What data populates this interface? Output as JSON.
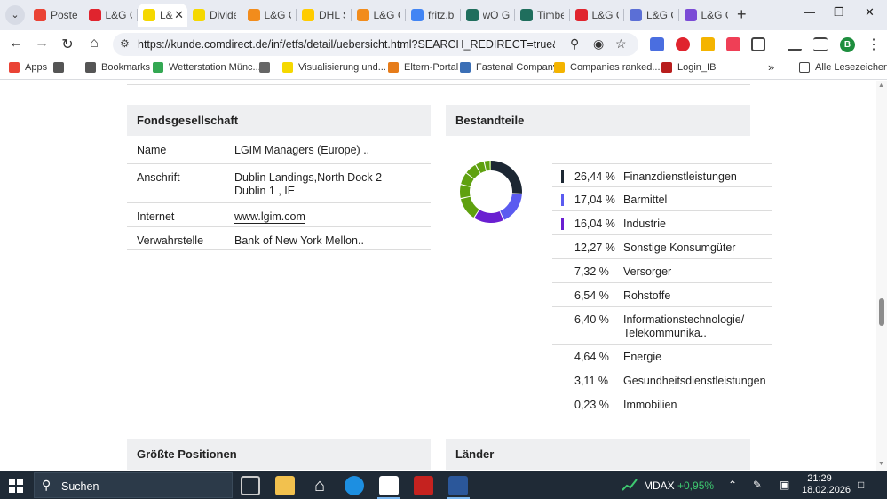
{
  "browser": {
    "tabs": [
      {
        "label": "Postei",
        "color": "#ea4335"
      },
      {
        "label": "L&G G",
        "color": "#e0242e"
      },
      {
        "label": "L&",
        "color": "#f5d800",
        "active": true
      },
      {
        "label": "Divide",
        "color": "#f5d800"
      },
      {
        "label": "L&G G",
        "color": "#f28c1c"
      },
      {
        "label": "DHL S",
        "color": "#ffcc00"
      },
      {
        "label": "L&G G",
        "color": "#f28c1c"
      },
      {
        "label": "fritz.b",
        "color": "#4285f4"
      },
      {
        "label": "wO G",
        "color": "#1f6e5d"
      },
      {
        "label": "Timbe",
        "color": "#1f6e5d"
      },
      {
        "label": "L&G G",
        "color": "#e0242e"
      },
      {
        "label": "L&G G",
        "color": "#5b6fd6"
      },
      {
        "label": "L&G G",
        "color": "#7b4bd6"
      }
    ],
    "url": "https://kunde.comdirect.de/inf/etfs/detail/uebersicht.html?SEARCH_REDIRECT=true&REDIRECT_T..."
  },
  "bookmarks": [
    {
      "label": "Apps",
      "icon": "apps-grid-icon",
      "color": "#ea4335"
    },
    {
      "label": "",
      "icon": "tab-groups-icon",
      "color": "#555555"
    },
    {
      "label": "Bookmarks",
      "icon": "star-icon",
      "color": "#555555"
    },
    {
      "label": "Wetterstation Münc...",
      "icon": "weather-icon",
      "color": "#34a853"
    },
    {
      "label": "",
      "icon": "globe-icon",
      "color": "#666666"
    },
    {
      "label": "Visualisierung und...",
      "icon": "visual-icon",
      "color": "#f5d800"
    },
    {
      "label": "Eltern-Portal",
      "icon": "portal-icon",
      "color": "#e67c1a"
    },
    {
      "label": "Fastenal Company",
      "icon": "chart-bars-icon",
      "color": "#3b6fb6"
    },
    {
      "label": "Companies ranked...",
      "icon": "ranked-icon",
      "color": "#f4b400"
    },
    {
      "label": "Login_IB",
      "icon": "login-icon",
      "color": "#b81d1d"
    }
  ],
  "bookmarks_more": "»",
  "bookmarks_folder": "Alle Lesezeichen",
  "fund_company": {
    "heading": "Fondsgesellschaft",
    "rows": [
      {
        "key": "Name",
        "value": "LGIM Managers (Europe) .."
      },
      {
        "key": "Anschrift",
        "value": "Dublin Landings,North Dock 2\nDublin 1 , IE"
      },
      {
        "key": "Internet",
        "value": "www.lgim.com",
        "link": true
      },
      {
        "key": "Verwahrstelle",
        "value": "Bank of New York Mellon.."
      }
    ]
  },
  "components": {
    "heading": "Bestandteile",
    "items": [
      {
        "pct": "26,44 %",
        "value": 26.44,
        "name": "Finanzdienstleistungen",
        "color": "#1c2733"
      },
      {
        "pct": "17,04 %",
        "value": 17.04,
        "name": "Barmittel",
        "color": "#5b5bf0"
      },
      {
        "pct": "16,04 %",
        "value": 16.04,
        "name": "Industrie",
        "color": "#6a1fd1"
      },
      {
        "pct": "12,27 %",
        "value": 12.27,
        "name": "Sonstige Konsumgüter",
        "color": "#5fa10f"
      },
      {
        "pct": "7,32 %",
        "value": 7.32,
        "name": "Versorger",
        "color": "#5fa10f"
      },
      {
        "pct": "6,54 %",
        "value": 6.54,
        "name": "Rohstoffe",
        "color": "#5fa10f"
      },
      {
        "pct": "6,40 %",
        "value": 6.4,
        "name": "Informationstechnologie/ Telekommunika..",
        "color": "#5fa10f"
      },
      {
        "pct": "4,64 %",
        "value": 4.64,
        "name": "Energie",
        "color": "#5fa10f"
      },
      {
        "pct": "3,11 %",
        "value": 3.11,
        "name": "Gesundheitsdienstleistungen",
        "color": "#5fa10f"
      },
      {
        "pct": "0,23 %",
        "value": 0.23,
        "name": "Immobilien",
        "color": "#5fa10f"
      }
    ]
  },
  "bottom_sections": {
    "positions": "Größte Positionen",
    "countries": "Länder"
  },
  "taskbar": {
    "search": "Suchen",
    "ticker": "MDAX",
    "ticker_change": "+0,95%",
    "time": "21:29",
    "date": "18.02.2026"
  }
}
